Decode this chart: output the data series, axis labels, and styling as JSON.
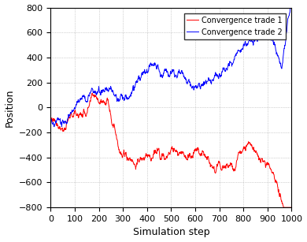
{
  "title": "",
  "xlabel": "Simulation step",
  "ylabel": "Position",
  "xlim": [
    0,
    1000
  ],
  "ylim": [
    -800,
    800
  ],
  "xticks": [
    0,
    100,
    200,
    300,
    400,
    500,
    600,
    700,
    800,
    900,
    1000
  ],
  "yticks": [
    -800,
    -600,
    -400,
    -200,
    0,
    200,
    400,
    600,
    800
  ],
  "line1_color": "#FF0000",
  "line2_color": "#0000FF",
  "line1_label": "Convergence trade 1",
  "line2_label": "Convergence trade 2",
  "line_width": 0.7,
  "grid_color": "#aaaaaa",
  "grid_linestyle": ":",
  "background_color": "#ffffff",
  "legend_fontsize": 7,
  "axis_fontsize": 9,
  "tick_fontsize": 8,
  "n_steps": 1000,
  "seed": 77
}
